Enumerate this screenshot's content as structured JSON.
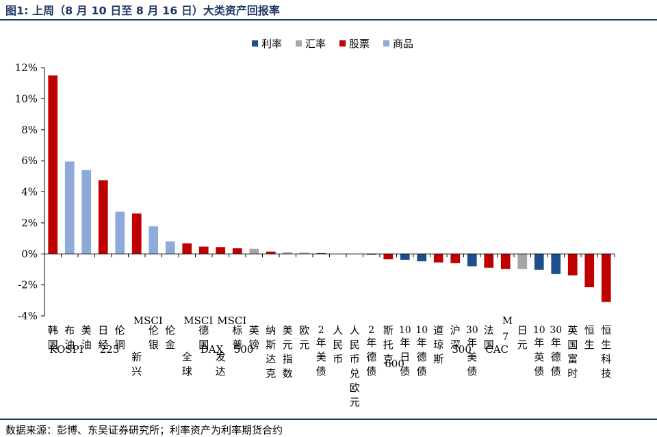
{
  "title": "图1:  上周（8 月 10 日至 8 月 16 日）大类资产回报率",
  "source": "数据来源：彭博、东吴证券研究所；利率资产为利率期货合约",
  "colors": {
    "利率": "#1f4e8c",
    "汇率": "#a6a6a6",
    "股票": "#c00000",
    "商品": "#8eaadb"
  },
  "chart_data": {
    "type": "bar",
    "title": "",
    "xlabel": "",
    "ylabel": "",
    "ylim": [
      -4,
      12
    ],
    "yticks": [
      -4,
      -2,
      0,
      2,
      4,
      6,
      8,
      10,
      12
    ],
    "ytick_labels": [
      "-4%",
      "-2%",
      "0%",
      "2%",
      "4%",
      "6%",
      "8%",
      "10%",
      "12%"
    ],
    "grid": false,
    "legend_position": "top-right",
    "legend": [
      "利率",
      "汇率",
      "股票",
      "商品"
    ],
    "categories": [
      "韩国KOSPI",
      "布油",
      "美油",
      "日经225",
      "伦铜",
      "MSCI新兴",
      "伦银",
      "伦金",
      "MSCI全球",
      "德国DAX",
      "MSCI发达",
      "标普500",
      "英镑",
      "纳斯达克",
      "美元指数",
      "欧元",
      "2年美债",
      "人民币",
      "人民币兑欧元",
      "2年德债",
      "斯托克600",
      "10年日债",
      "10年德债",
      "道琼斯",
      "沪深300",
      "30年美债",
      "法国CAC",
      "M7",
      "日元",
      "10年英债",
      "30年德债",
      "英国富时",
      "恒生",
      "恒生科技"
    ],
    "values": [
      11.5,
      5.95,
      5.4,
      4.75,
      2.72,
      2.6,
      1.78,
      0.8,
      0.68,
      0.47,
      0.44,
      0.36,
      0.33,
      0.15,
      0.1,
      0.08,
      0.06,
      0.0,
      -0.02,
      -0.06,
      -0.35,
      -0.38,
      -0.48,
      -0.55,
      -0.6,
      -0.8,
      -0.9,
      -0.97,
      -0.97,
      -1.03,
      -1.3,
      -1.38,
      -2.15,
      -3.1
    ],
    "groups": [
      "股票",
      "商品",
      "商品",
      "股票",
      "商品",
      "股票",
      "商品",
      "商品",
      "股票",
      "股票",
      "股票",
      "股票",
      "汇率",
      "股票",
      "汇率",
      "汇率",
      "利率",
      "汇率",
      "汇率",
      "利率",
      "股票",
      "利率",
      "利率",
      "股票",
      "股票",
      "利率",
      "股票",
      "股票",
      "汇率",
      "利率",
      "利率",
      "股票",
      "股票",
      "股票"
    ]
  }
}
